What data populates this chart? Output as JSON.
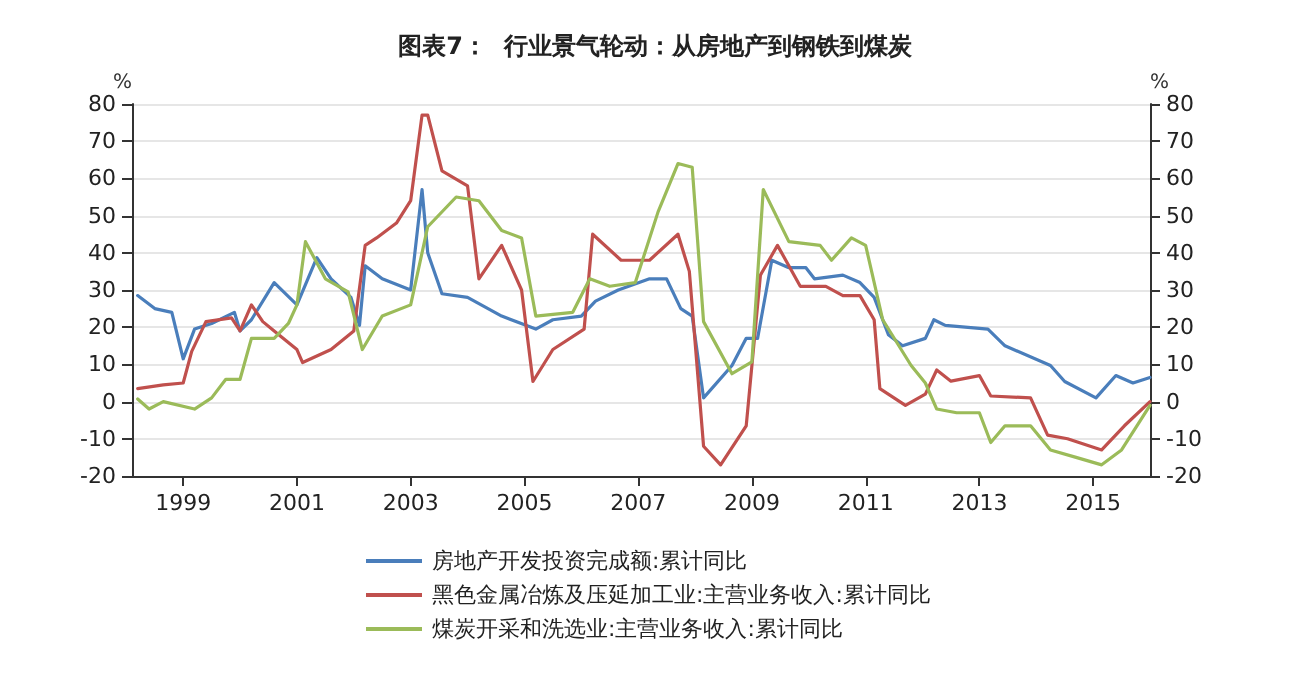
{
  "chart_data": {
    "type": "line",
    "title": "图表7：  行业景气轮动：从房地产到钢铁到煤炭",
    "ylabel": "%",
    "y2label": "%",
    "xlim": [
      1998.1,
      2016.0
    ],
    "xticks": [
      1999,
      2001,
      2003,
      2005,
      2007,
      2009,
      2011,
      2013,
      2015
    ],
    "ylim": [
      -20,
      80
    ],
    "yticks": [
      -20,
      -10,
      0,
      10,
      20,
      30,
      40,
      50,
      60,
      70,
      80
    ],
    "y2lim": [
      -20,
      80
    ],
    "y2ticks": [
      -20,
      -10,
      0,
      10,
      20,
      30,
      40,
      50,
      60,
      70,
      80
    ],
    "grid": "y",
    "legend": "bottom",
    "marker": "none",
    "line_style": "solid",
    "series": [
      {
        "name": "房地产开发投资完成额:累计同比",
        "color": "#4a7ebb",
        "x": [
          1998.2,
          1998.5,
          1998.8,
          1999.0,
          1999.2,
          1999.5,
          1999.9,
          2000.0,
          2000.2,
          2000.6,
          2001.0,
          2001.35,
          2001.6,
          2001.95,
          2002.1,
          2002.2,
          2002.5,
          2003.0,
          2003.2,
          2003.3,
          2003.55,
          2004.0,
          2004.6,
          2005.2,
          2005.5,
          2006.0,
          2006.25,
          2006.65,
          2007.2,
          2007.5,
          2007.75,
          2007.95,
          2008.15,
          2008.65,
          2008.9,
          2009.1,
          2009.35,
          2009.65,
          2009.95,
          2010.1,
          2010.6,
          2010.9,
          2011.15,
          2011.4,
          2011.65,
          2012.05,
          2012.2,
          2012.4,
          2013.15,
          2013.45,
          2014.25,
          2014.5,
          2015.05,
          2015.4,
          2015.7,
          2016.0
        ],
        "values": [
          28.5,
          25,
          24,
          11.5,
          19.5,
          21,
          24,
          19,
          22,
          32,
          26,
          38.7,
          33,
          28,
          20.5,
          36.5,
          33,
          30,
          57,
          40,
          29,
          28,
          23,
          19.5,
          22,
          23,
          27,
          30,
          33,
          33,
          25,
          23,
          1,
          9.7,
          17,
          17,
          38,
          36,
          36,
          33,
          34,
          32,
          28,
          18,
          15,
          17,
          22,
          20.5,
          19.5,
          15,
          9.7,
          5.4,
          1,
          7,
          5,
          6.5
        ]
      },
      {
        "name": "黑色金属冶炼及压延加工业:主营业务收入:累计同比",
        "color": "#c0504d",
        "x": [
          1998.2,
          1998.65,
          1999.0,
          1999.15,
          1999.4,
          1999.85,
          2000.0,
          2000.2,
          2000.4,
          2000.6,
          2001.0,
          2001.1,
          2001.6,
          2002.0,
          2002.2,
          2002.4,
          2002.75,
          2003.0,
          2003.2,
          2003.3,
          2003.55,
          2004.0,
          2004.2,
          2004.6,
          2004.95,
          2005.15,
          2005.5,
          2006.05,
          2006.2,
          2006.7,
          2007.2,
          2007.7,
          2007.9,
          2008.15,
          2008.45,
          2008.9,
          2009.15,
          2009.45,
          2009.85,
          2010.3,
          2010.6,
          2010.9,
          2011.15,
          2011.25,
          2011.7,
          2012.05,
          2012.25,
          2012.5,
          2013.0,
          2013.2,
          2013.9,
          2014.2,
          2014.55,
          2015.15,
          2015.55,
          2016.0
        ],
        "values": [
          3.5,
          4.5,
          5,
          13.5,
          21.5,
          22.5,
          19,
          26,
          21.5,
          19,
          14,
          10.5,
          14,
          19,
          42,
          44,
          48,
          54,
          77,
          77,
          62,
          58,
          33,
          42,
          30,
          5.4,
          14,
          19.5,
          45,
          38,
          38,
          45,
          35,
          -12,
          -17,
          -6.5,
          34,
          42,
          31,
          31,
          28.5,
          28.5,
          22,
          3.5,
          -1,
          2,
          8.5,
          5.5,
          7,
          1.5,
          1,
          -9,
          -10,
          -13,
          -6.5,
          0
        ]
      },
      {
        "name": "煤炭开采和洗选业:主营业务收入:累计同比",
        "color": "#9bbb59",
        "x": [
          1998.2,
          1998.4,
          1998.65,
          1999.2,
          1999.5,
          1999.75,
          2000.0,
          2000.2,
          2000.6,
          2000.85,
          2001.0,
          2001.15,
          2001.5,
          2001.9,
          2002.15,
          2002.5,
          2003.0,
          2003.3,
          2003.8,
          2004.2,
          2004.6,
          2004.95,
          2005.2,
          2005.85,
          2006.15,
          2006.5,
          2006.95,
          2007.35,
          2007.7,
          2007.95,
          2008.15,
          2008.65,
          2009.0,
          2009.2,
          2009.65,
          2010.2,
          2010.4,
          2010.75,
          2011.0,
          2011.3,
          2011.8,
          2012.05,
          2012.25,
          2012.6,
          2013.0,
          2013.2,
          2013.45,
          2013.9,
          2014.25,
          2014.7,
          2015.15,
          2015.5,
          2016.0
        ],
        "values": [
          0.7,
          -2,
          0,
          -2,
          1,
          6,
          6,
          17,
          17,
          21,
          26,
          43,
          33,
          29.5,
          14,
          23,
          26,
          47,
          55,
          54,
          46,
          44,
          23,
          24,
          33,
          31,
          32,
          51,
          64,
          63,
          21.5,
          7.5,
          10.7,
          57,
          43,
          42,
          38,
          44,
          42,
          22,
          9.7,
          5,
          -2,
          -3,
          -3,
          -11,
          -6.5,
          -6.5,
          -13,
          -15,
          -17,
          -13,
          -1
        ]
      }
    ]
  }
}
